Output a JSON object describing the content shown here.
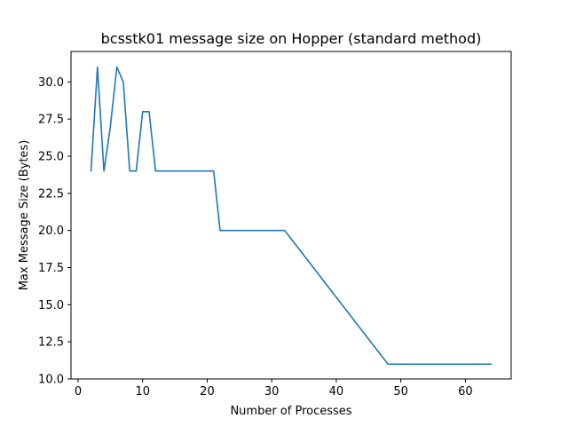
{
  "chart_data": {
    "type": "line",
    "title": "bcsstk01 message size on Hopper (standard method)",
    "xlabel": "Number of Processes",
    "ylabel": "Max Message Size (Bytes)",
    "xlim": [
      -1.1,
      67.1
    ],
    "ylim": [
      10.0,
      32.05
    ],
    "xticks": [
      0,
      10,
      20,
      30,
      40,
      50,
      60
    ],
    "xtick_labels": [
      "0",
      "10",
      "20",
      "30",
      "40",
      "50",
      "60"
    ],
    "yticks": [
      10.0,
      12.5,
      15.0,
      17.5,
      20.0,
      22.5,
      25.0,
      27.5,
      30.0
    ],
    "ytick_labels": [
      "10.0",
      "12.5",
      "15.0",
      "17.5",
      "20.0",
      "22.5",
      "25.0",
      "27.5",
      "30.0"
    ],
    "grid": false,
    "series": [
      {
        "color": "#1f77b4",
        "x": [
          2,
          3,
          4,
          5,
          6,
          7,
          8,
          9,
          10,
          11,
          12,
          13,
          14,
          15,
          16,
          17,
          18,
          19,
          20,
          21,
          22,
          32,
          48,
          64
        ],
        "y": [
          24,
          31,
          24,
          27,
          31,
          30,
          24,
          24,
          28,
          28,
          24,
          24,
          24,
          24,
          24,
          24,
          24,
          24,
          24,
          24,
          20,
          20,
          11,
          11
        ]
      }
    ]
  }
}
